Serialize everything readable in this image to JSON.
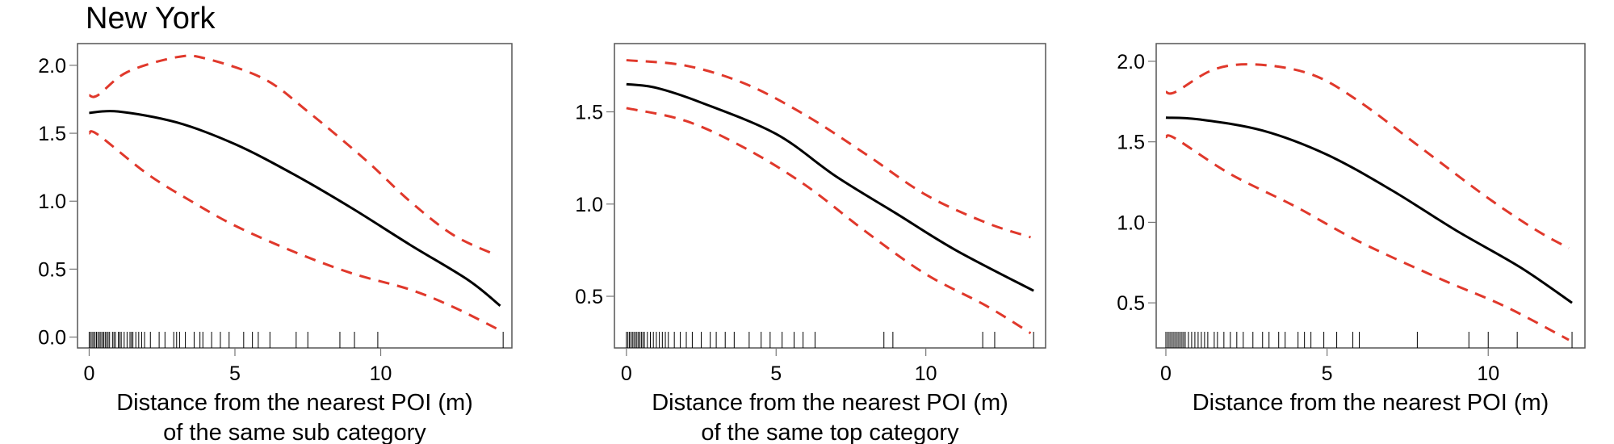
{
  "title": "New York",
  "colors": {
    "fit": "#000000",
    "ci": "#e0382b",
    "rug": "#000000",
    "frame": "#555555"
  },
  "chart_data": [
    {
      "type": "line",
      "xlabel": [
        "Distance from the nearest POI (m)",
        "of the same sub category"
      ],
      "ylabel": "",
      "xlim": [
        -0.4,
        14.5
      ],
      "ylim": [
        -0.08,
        2.16
      ],
      "xticks": [
        0,
        5,
        10
      ],
      "yticks": [
        0.0,
        0.5,
        1.0,
        1.5,
        2.0
      ],
      "ytick_labels": [
        "0.0",
        "0.5",
        "1.0",
        "1.5",
        "2.0"
      ],
      "grid": false,
      "series": [
        {
          "role": "fit",
          "style": "solid",
          "x": [
            0,
            1,
            3,
            5,
            7,
            9,
            11,
            13,
            14.1
          ],
          "y": [
            1.65,
            1.66,
            1.58,
            1.42,
            1.2,
            0.95,
            0.68,
            0.42,
            0.23
          ]
        },
        {
          "role": "upper",
          "style": "dashed",
          "x": [
            0,
            0.3,
            1.3,
            3,
            4,
            6,
            7.5,
            9.5,
            11,
            12.5,
            14
          ],
          "y": [
            1.78,
            1.78,
            1.95,
            2.06,
            2.05,
            1.9,
            1.66,
            1.3,
            1.0,
            0.75,
            0.6
          ]
        },
        {
          "role": "lower",
          "style": "dashed",
          "x": [
            0,
            0.3,
            2,
            3.5,
            5,
            7,
            9,
            11,
            12.5,
            14
          ],
          "y": [
            1.5,
            1.49,
            1.2,
            1.0,
            0.82,
            0.63,
            0.47,
            0.35,
            0.22,
            0.06
          ]
        }
      ],
      "rug": [
        0,
        0.05,
        0.1,
        0.15,
        0.2,
        0.25,
        0.3,
        0.35,
        0.4,
        0.45,
        0.5,
        0.55,
        0.6,
        0.65,
        0.7,
        0.8,
        0.85,
        0.9,
        1.0,
        1.05,
        1.1,
        1.2,
        1.3,
        1.4,
        1.45,
        1.5,
        1.6,
        1.7,
        1.8,
        1.9,
        2.1,
        2.4,
        2.6,
        2.9,
        3.0,
        3.1,
        3.3,
        3.6,
        3.8,
        3.9,
        4.2,
        4.5,
        4.8,
        5.3,
        5.6,
        5.8,
        6.2,
        7.1,
        7.5,
        8.6,
        9.1,
        9.9,
        14.2
      ]
    },
    {
      "type": "line",
      "xlabel": [
        "Distance from the nearest POI (m)",
        "of the same top category"
      ],
      "ylabel": "",
      "xlim": [
        -0.4,
        14.0
      ],
      "ylim": [
        0.22,
        1.87
      ],
      "xticks": [
        0,
        5,
        10
      ],
      "yticks": [
        0.5,
        1.0,
        1.5
      ],
      "ytick_labels": [
        "0.5",
        "1.0",
        "1.5"
      ],
      "grid": false,
      "series": [
        {
          "role": "fit",
          "style": "solid",
          "x": [
            0,
            1,
            2.5,
            5,
            7,
            9,
            11,
            13.6
          ],
          "y": [
            1.65,
            1.63,
            1.55,
            1.38,
            1.15,
            0.95,
            0.75,
            0.53
          ]
        },
        {
          "role": "upper",
          "style": "dashed",
          "x": [
            0,
            2,
            4,
            6,
            8,
            10,
            12,
            13.5
          ],
          "y": [
            1.78,
            1.75,
            1.65,
            1.48,
            1.27,
            1.05,
            0.9,
            0.82
          ]
        },
        {
          "role": "lower",
          "style": "dashed",
          "x": [
            0,
            2,
            4,
            6,
            8,
            10,
            12,
            13.5
          ],
          "y": [
            1.52,
            1.45,
            1.3,
            1.1,
            0.85,
            0.62,
            0.45,
            0.3
          ]
        }
      ],
      "rug": [
        0,
        0.05,
        0.1,
        0.15,
        0.2,
        0.25,
        0.3,
        0.35,
        0.4,
        0.45,
        0.5,
        0.55,
        0.6,
        0.7,
        0.8,
        0.9,
        1.0,
        1.1,
        1.2,
        1.3,
        1.4,
        1.6,
        1.8,
        2.0,
        2.2,
        2.5,
        2.8,
        3.0,
        3.3,
        3.6,
        4.1,
        4.5,
        4.8,
        5.2,
        5.6,
        5.9,
        6.3,
        8.6,
        8.9,
        11.9,
        12.3,
        13.6
      ]
    },
    {
      "type": "line",
      "xlabel": [
        "Distance from the nearest POI (m)"
      ],
      "ylabel": "",
      "xlim": [
        -0.3,
        13.0
      ],
      "ylim": [
        0.22,
        2.11
      ],
      "xticks": [
        0,
        5,
        10
      ],
      "yticks": [
        0.5,
        1.0,
        1.5,
        2.0
      ],
      "ytick_labels": [
        "0.5",
        "1.0",
        "1.5",
        "2.0"
      ],
      "grid": false,
      "series": [
        {
          "role": "fit",
          "style": "solid",
          "x": [
            0,
            1,
            3,
            5,
            7,
            9,
            11,
            12.6
          ],
          "y": [
            1.65,
            1.64,
            1.57,
            1.42,
            1.2,
            0.95,
            0.72,
            0.5
          ]
        },
        {
          "role": "upper",
          "style": "dashed",
          "x": [
            0,
            0.3,
            1.5,
            2.8,
            4.5,
            6,
            8,
            10,
            11.5,
            12.5
          ],
          "y": [
            1.81,
            1.81,
            1.95,
            1.98,
            1.92,
            1.75,
            1.45,
            1.15,
            0.95,
            0.84
          ]
        },
        {
          "role": "lower",
          "style": "dashed",
          "x": [
            0,
            0.3,
            2,
            4,
            6,
            8.5,
            10.5,
            12.5
          ],
          "y": [
            1.53,
            1.52,
            1.3,
            1.1,
            0.88,
            0.65,
            0.48,
            0.27
          ]
        }
      ],
      "rug": [
        0,
        0.05,
        0.1,
        0.15,
        0.2,
        0.25,
        0.3,
        0.35,
        0.4,
        0.45,
        0.5,
        0.55,
        0.6,
        0.7,
        0.8,
        0.9,
        1.0,
        1.1,
        1.2,
        1.3,
        1.5,
        1.6,
        1.8,
        2.0,
        2.2,
        2.4,
        2.7,
        3.0,
        3.2,
        3.5,
        3.7,
        4.1,
        4.3,
        4.5,
        4.9,
        5.3,
        5.8,
        6.0,
        7.8,
        9.4,
        10.0,
        10.9,
        12.6
      ]
    }
  ]
}
